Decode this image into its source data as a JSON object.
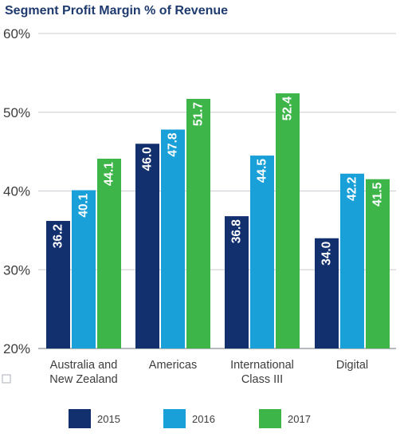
{
  "chart_data": {
    "type": "bar",
    "title": "Segment Profit Margin % of Revenue",
    "categories": [
      [
        "Australia and",
        "New Zealand"
      ],
      [
        "Americas"
      ],
      [
        "International",
        "Class III"
      ],
      [
        "Digital"
      ]
    ],
    "series": [
      {
        "name": "2015",
        "color": "#13306e",
        "values": [
          36.2,
          46.0,
          36.8,
          34.0
        ]
      },
      {
        "name": "2016",
        "color": "#1aa0d9",
        "values": [
          40.1,
          47.8,
          44.5,
          42.2
        ]
      },
      {
        "name": "2017",
        "color": "#3db549",
        "values": [
          44.1,
          51.7,
          52.4,
          41.5
        ]
      }
    ],
    "yticks": [
      "20%",
      "30%",
      "40%",
      "50%",
      "60%"
    ],
    "ylim": [
      20,
      60
    ],
    "grid": true,
    "legend_position": "bottom"
  }
}
